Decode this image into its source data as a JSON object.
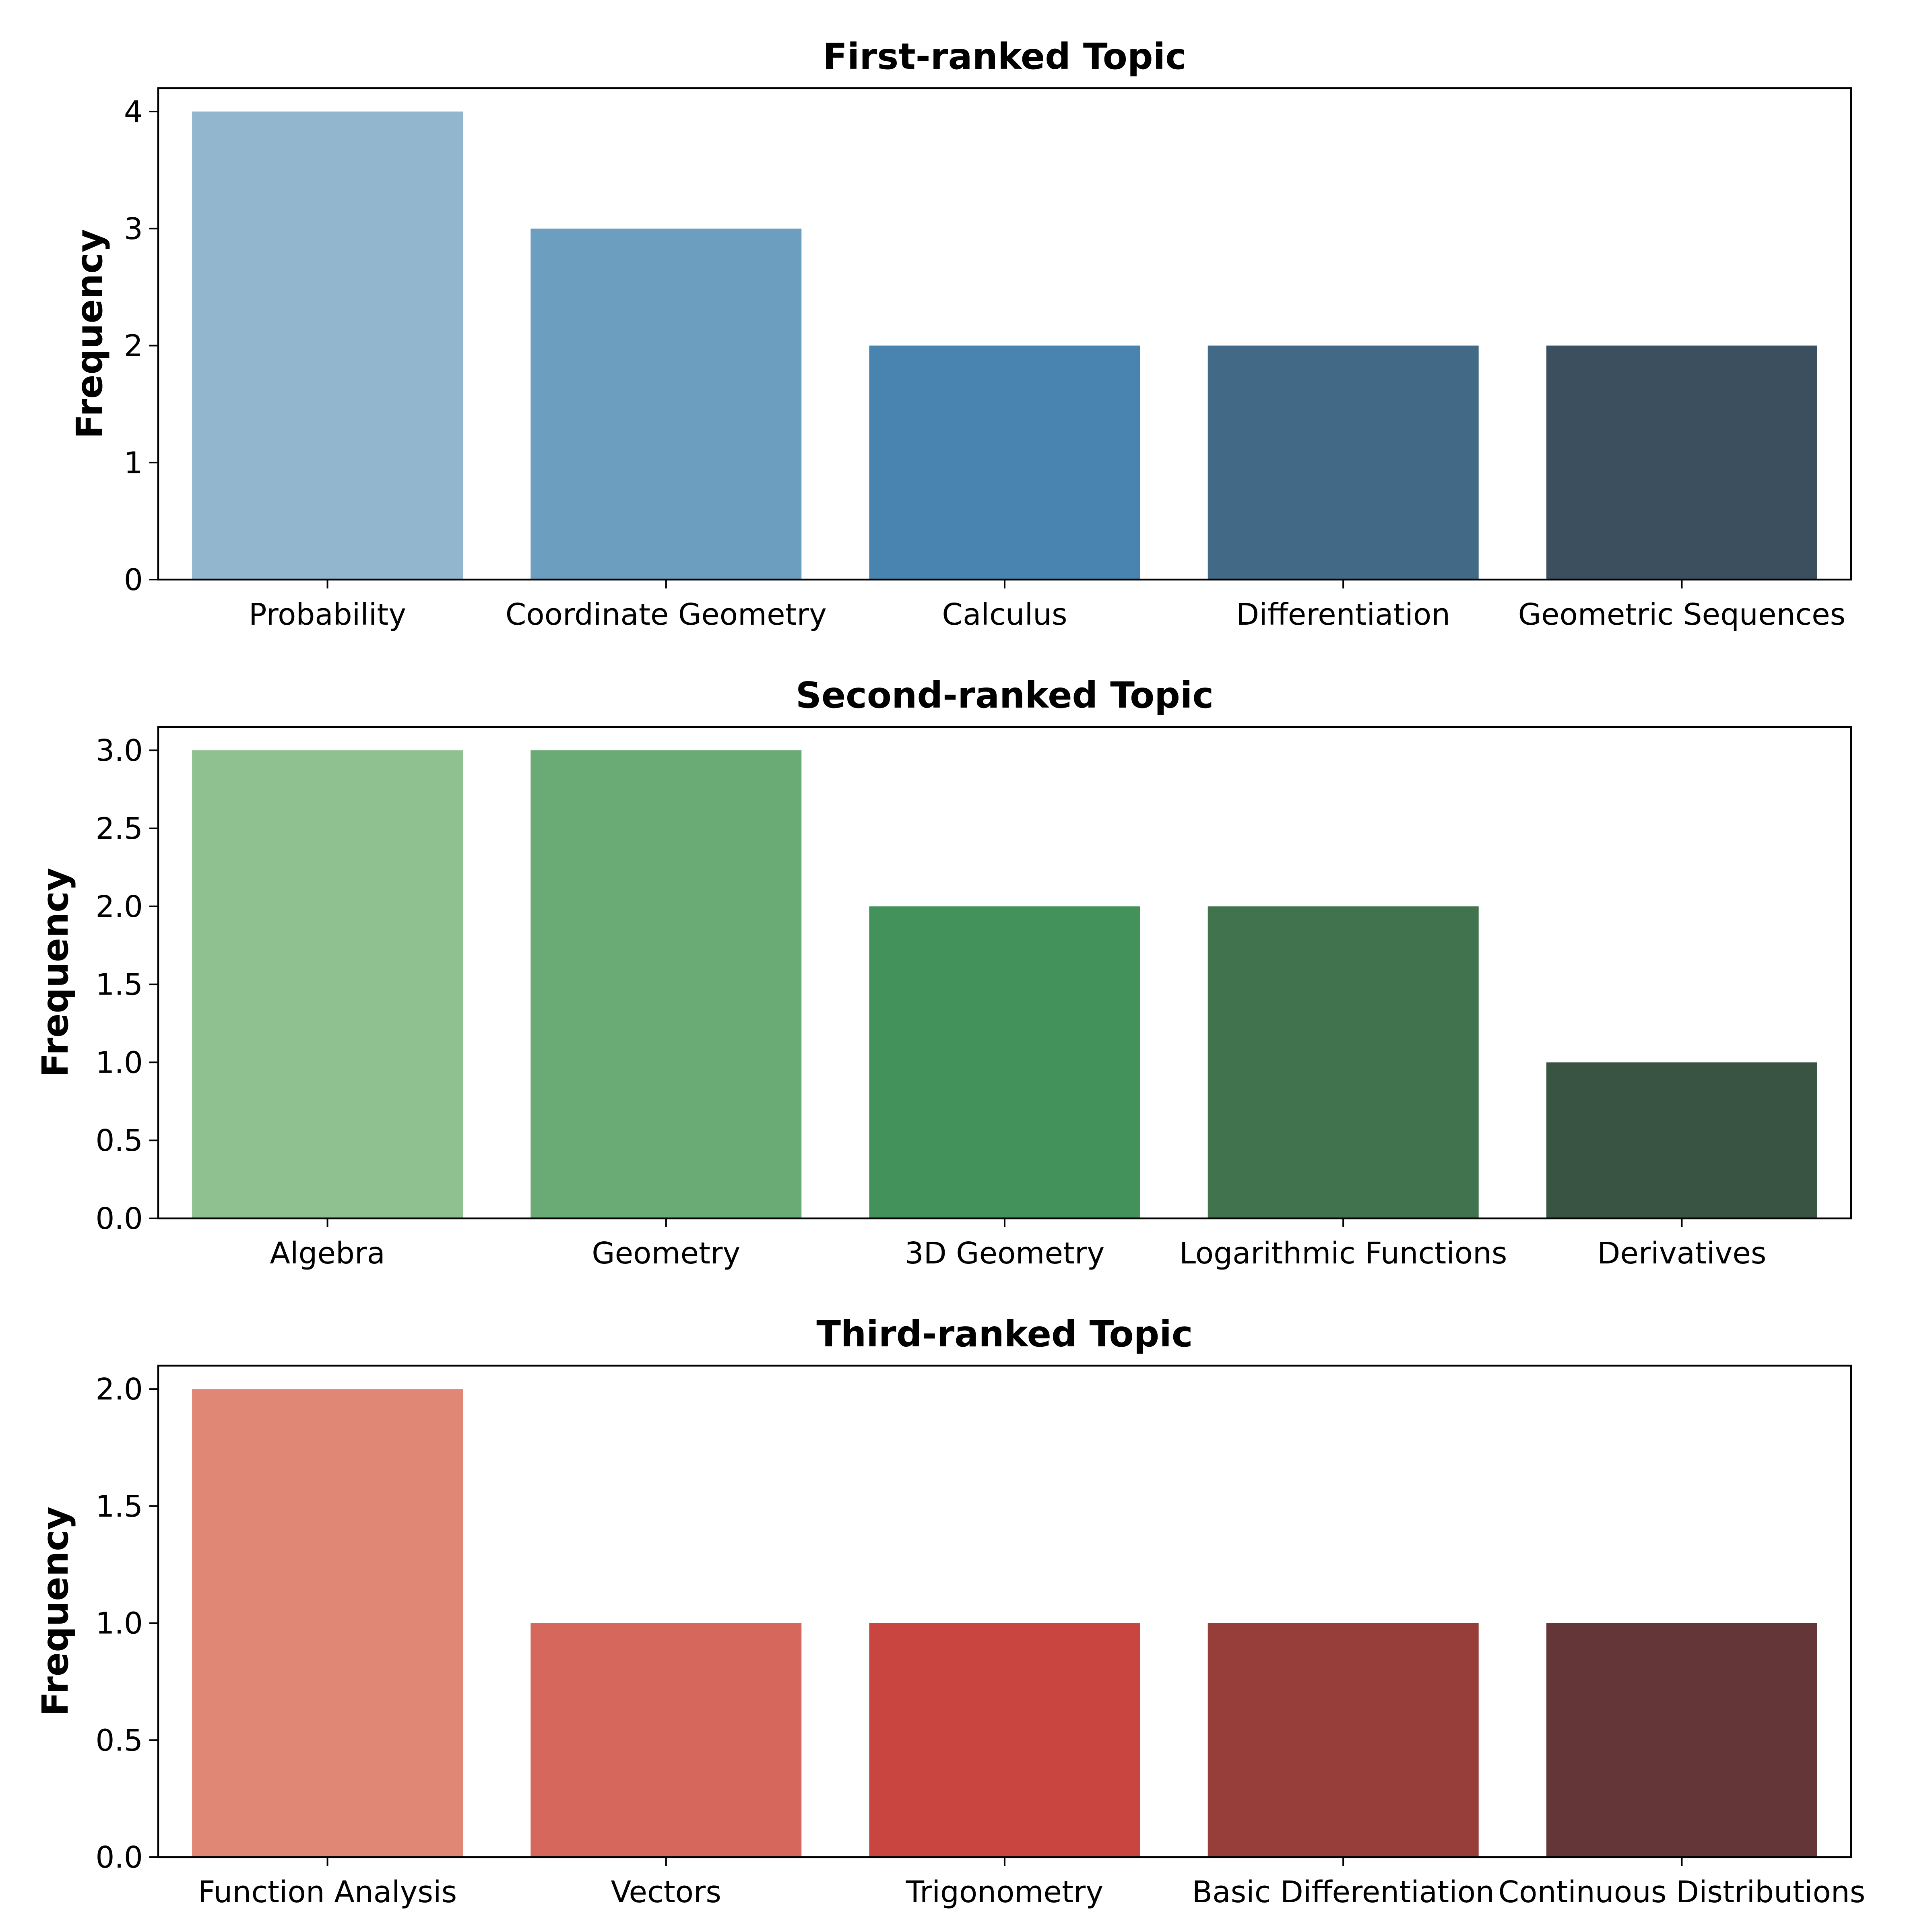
{
  "chart_data": [
    {
      "type": "bar",
      "title": "First-ranked Topic",
      "xlabel": "",
      "ylabel": "Frequency",
      "categories": [
        "Probability",
        "Coordinate Geometry",
        "Calculus",
        "Differentiation",
        "Geometric Sequences"
      ],
      "values": [
        4,
        3,
        2,
        2,
        2
      ],
      "ylim": [
        0,
        4.2
      ],
      "yticks": [
        0,
        1,
        2,
        3,
        4
      ],
      "ytick_labels": [
        "0",
        "1",
        "2",
        "3",
        "4"
      ],
      "colors": [
        "#91b6ce",
        "#6c9ebf",
        "#4983b0",
        "#426985",
        "#3c4f5e"
      ]
    },
    {
      "type": "bar",
      "title": "Second-ranked Topic",
      "xlabel": "",
      "ylabel": "Frequency",
      "categories": [
        "Algebra",
        "Geometry",
        "3D Geometry",
        "Logarithmic Functions",
        "Derivatives"
      ],
      "values": [
        3,
        3,
        2,
        2,
        1
      ],
      "ylim": [
        0,
        3.15
      ],
      "yticks": [
        0,
        0.5,
        1,
        1.5,
        2,
        2.5,
        3
      ],
      "ytick_labels": [
        "0.0",
        "0.5",
        "1.0",
        "1.5",
        "2.0",
        "2.5",
        "3.0"
      ],
      "colors": [
        "#8fc08f",
        "#69aa75",
        "#44925b",
        "#41734f",
        "#3a5443"
      ]
    },
    {
      "type": "bar",
      "title": "Third-ranked Topic",
      "xlabel": "",
      "ylabel": "Frequency",
      "categories": [
        "Function Analysis",
        "Vectors",
        "Trigonometry",
        "Basic Differentiation",
        "Continuous Distributions"
      ],
      "values": [
        2,
        1,
        1,
        1,
        1
      ],
      "ylim": [
        0,
        2.1
      ],
      "yticks": [
        0,
        0.5,
        1,
        1.5,
        2
      ],
      "ytick_labels": [
        "0.0",
        "0.5",
        "1.0",
        "1.5",
        "2.0"
      ],
      "colors": [
        "#e08775",
        "#d6675c",
        "#c9453f",
        "#973e3b",
        "#643637"
      ]
    }
  ]
}
